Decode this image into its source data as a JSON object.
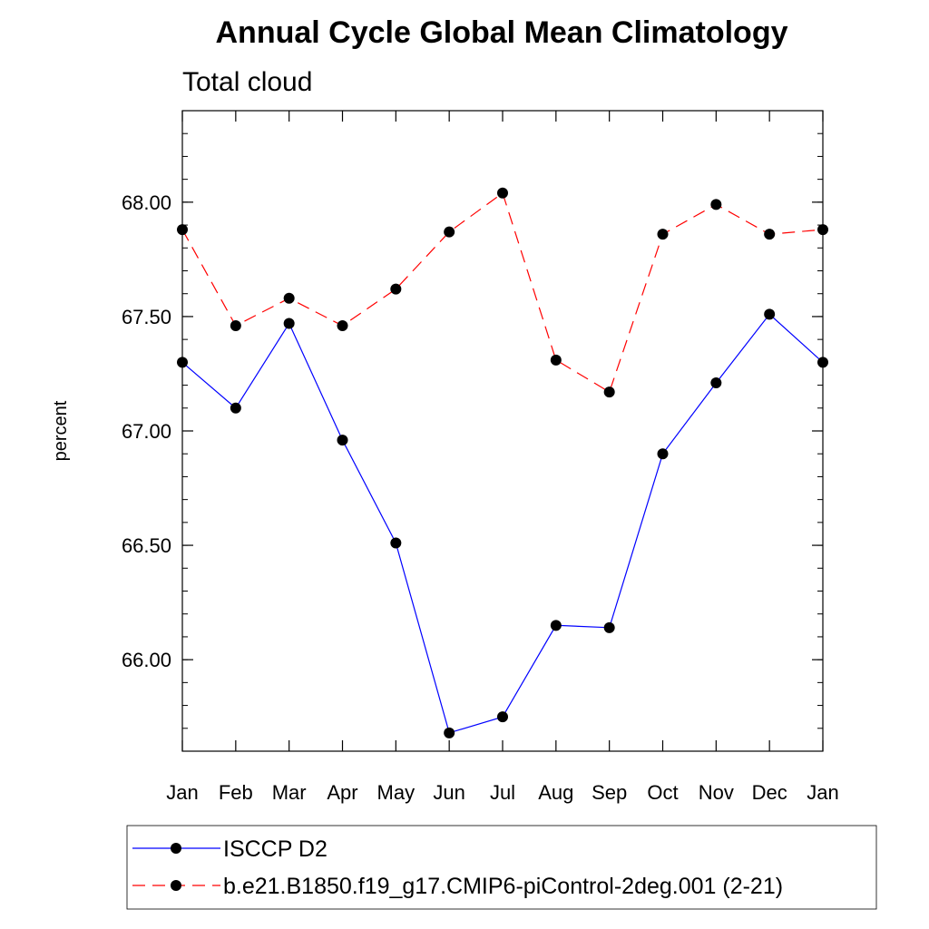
{
  "chart_data": {
    "type": "line",
    "title": "Annual Cycle Global Mean Climatology",
    "subtitle": "Total cloud",
    "xlabel": "",
    "ylabel": "percent",
    "categories": [
      "Jan",
      "Feb",
      "Mar",
      "Apr",
      "May",
      "Jun",
      "Jul",
      "Aug",
      "Sep",
      "Oct",
      "Nov",
      "Dec",
      "Jan"
    ],
    "ylim": [
      65.6,
      68.4
    ],
    "yticks": [
      66.0,
      66.5,
      67.0,
      67.5,
      68.0
    ],
    "ytick_labels": [
      "66.00",
      "66.50",
      "67.00",
      "67.50",
      "68.00"
    ],
    "series": [
      {
        "name": "ISCCP D2",
        "color": "#0000ff",
        "dash": "solid",
        "marker": "filled-circle",
        "values": [
          67.3,
          67.1,
          67.47,
          66.96,
          66.51,
          65.68,
          65.75,
          66.15,
          66.14,
          66.9,
          67.21,
          67.51,
          67.3
        ]
      },
      {
        "name": "b.e21.B1850.f19_g17.CMIP6-piControl-2deg.001 (2-21)",
        "color": "#ff0000",
        "dash": "dashed",
        "marker": "filled-circle",
        "values": [
          67.88,
          67.46,
          67.58,
          67.46,
          67.62,
          67.87,
          68.04,
          67.31,
          67.17,
          67.86,
          67.99,
          67.86,
          67.88
        ]
      }
    ],
    "legend_position": "bottom"
  }
}
